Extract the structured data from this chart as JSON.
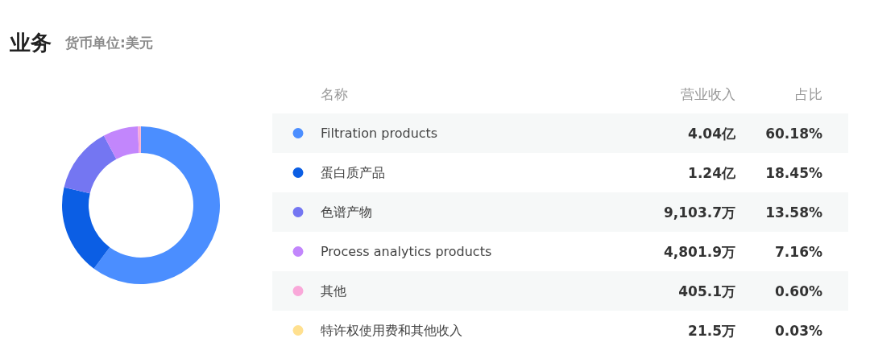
{
  "chart_data": {
    "type": "donut",
    "title": "业务",
    "subtitle": "货币单位:美元",
    "categories": [
      "Filtration products",
      "蛋白质产品",
      "色谱产物",
      "Process analytics products",
      "其他",
      "特许权使用费和其他收入"
    ],
    "values": [
      60.18,
      18.45,
      13.58,
      7.16,
      0.6,
      0.03
    ],
    "colors": [
      "#4b8eff",
      "#0b5ee4",
      "#7476f2",
      "#c286fc",
      "#f9a8d9",
      "#ffe08f"
    ],
    "value_labels": [
      "60.18%",
      "18.45%",
      "13.58%",
      "7.16%",
      "0.60%",
      "0.03%"
    ],
    "annotations": [
      "名称",
      "营业收入",
      "占比",
      "4.04亿",
      "1.24亿",
      "9,103.7万",
      "4,801.9万",
      "405.1万",
      "21.5万"
    ],
    "legend": "right"
  }
}
